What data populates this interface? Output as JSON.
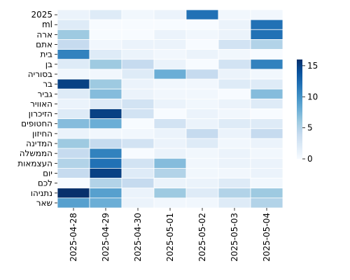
{
  "chart_data": {
    "type": "heatmap",
    "title": "",
    "xlabel": "",
    "ylabel": "",
    "colormap": "Blues",
    "vmin": 0,
    "vmax": 16,
    "colorbar_ticks": [
      0,
      5,
      10,
      15
    ],
    "x": [
      "2025-04-28",
      "2025-04-29",
      "2025-04-30",
      "2025-05-01",
      "2025-05-02",
      "2025-05-03",
      "2025-05-04"
    ],
    "y": [
      "2025",
      "ml",
      "ארה",
      "אתם",
      "בית",
      "בן",
      "בסוריה",
      "בר",
      "גביר",
      "האוויר",
      "הזיכרון",
      "החטופים",
      "החיזון",
      "המדינה",
      "הממשלה",
      "העצמאות",
      "יום",
      "לכם",
      "נתניהו",
      "שאר"
    ],
    "values": [
      [
        1,
        2,
        0.5,
        1,
        12,
        0.5,
        0.5
      ],
      [
        2,
        0,
        0,
        0,
        0,
        1,
        12
      ],
      [
        6,
        0,
        0,
        1,
        0.5,
        1,
        12
      ],
      [
        4,
        0.5,
        1,
        1,
        0,
        3,
        5
      ],
      [
        11,
        2,
        1,
        0.5,
        1,
        0.5,
        0
      ],
      [
        2,
        6,
        4,
        1,
        0,
        3,
        11
      ],
      [
        0.5,
        0.5,
        2,
        8,
        4,
        1,
        0.5
      ],
      [
        15,
        6,
        1,
        0.5,
        0.5,
        2,
        2
      ],
      [
        2,
        7,
        1,
        0.5,
        0.5,
        0,
        7
      ],
      [
        1,
        2,
        3,
        1,
        0.5,
        1,
        2
      ],
      [
        2,
        15,
        3,
        0,
        1,
        0.5,
        0
      ],
      [
        7,
        8,
        0,
        3,
        1,
        2,
        2
      ],
      [
        1,
        0.5,
        0.5,
        1,
        4,
        1,
        4
      ],
      [
        6,
        4,
        3,
        1,
        2,
        0.5,
        1
      ],
      [
        4,
        11,
        0,
        1,
        0.5,
        1,
        0.5
      ],
      [
        5,
        12,
        3,
        7,
        0.5,
        1,
        1
      ],
      [
        4,
        15,
        2,
        5,
        0.5,
        0.5,
        1
      ],
      [
        0,
        5,
        4,
        1,
        1,
        2,
        0.5
      ],
      [
        16,
        9,
        1,
        6,
        2,
        5,
        6
      ],
      [
        9,
        8,
        1,
        0.5,
        0.5,
        2,
        5
      ]
    ]
  }
}
